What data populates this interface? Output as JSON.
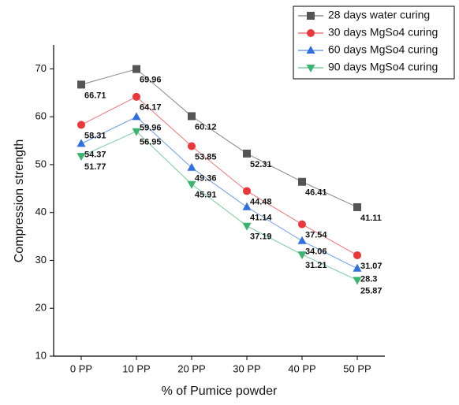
{
  "chart_data": {
    "type": "line",
    "x_label": "% of Pumice powder",
    "y_label": "Compression strength",
    "categories": [
      "0 PP",
      "10 PP",
      "20 PP",
      "30 PP",
      "40 PP",
      "50 PP"
    ],
    "series": [
      {
        "name": "28 days water curing",
        "color": "#555555",
        "marker": "square",
        "values": [
          66.71,
          69.96,
          60.12,
          52.31,
          46.41,
          41.11
        ]
      },
      {
        "name": "30 days MgSo4 curing",
        "color": "#e8383b",
        "marker": "circle",
        "values": [
          58.31,
          64.17,
          53.85,
          44.48,
          37.54,
          31.07
        ]
      },
      {
        "name": "60 days MgSo4 curing",
        "color": "#2f6fe0",
        "marker": "triangle-up",
        "values": [
          54.37,
          59.96,
          49.36,
          41.14,
          34.06,
          28.3
        ]
      },
      {
        "name": "90 days MgSo4 curing",
        "color": "#3cb371",
        "marker": "triangle-down",
        "values": [
          51.77,
          56.95,
          45.91,
          37.19,
          31.21,
          25.87
        ]
      }
    ],
    "ylim": [
      10,
      75
    ],
    "yticks": [
      10,
      20,
      30,
      40,
      50,
      60,
      70
    ],
    "legend": "upper right"
  }
}
